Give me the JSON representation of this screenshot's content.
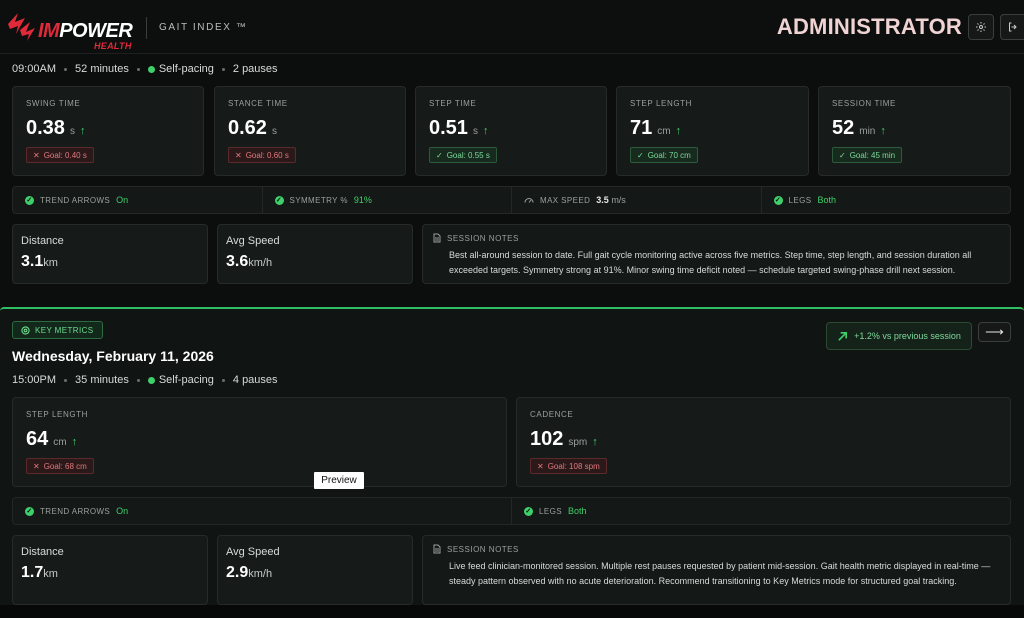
{
  "header": {
    "brand_im": "IM",
    "brand_power": "POWER",
    "brand_sub": "HEALTH",
    "product": "GAIT INDEX ™",
    "role": "ADMINISTRATOR"
  },
  "session1": {
    "time": "09:00AM",
    "duration": "52 minutes",
    "mode": "Self-pacing",
    "pauses": "2 pauses",
    "metrics": [
      {
        "label": "SWING TIME",
        "value": "0.38",
        "unit": "s",
        "goal": "Goal: 0.40 s",
        "status": "miss"
      },
      {
        "label": "STANCE TIME",
        "value": "0.62",
        "unit": "s",
        "goal": "Goal: 0.60 s",
        "status": "miss"
      },
      {
        "label": "STEP TIME",
        "value": "0.51",
        "unit": "s",
        "goal": "Goal: 0.55 s",
        "status": "hit"
      },
      {
        "label": "STEP LENGTH",
        "value": "71",
        "unit": "cm",
        "goal": "Goal: 70 cm",
        "status": "hit"
      },
      {
        "label": "SESSION TIME",
        "value": "52",
        "unit": "min",
        "goal": "Goal: 45 min",
        "status": "hit"
      }
    ],
    "flags": {
      "trend_label": "TREND ARROWS",
      "trend_value": "On",
      "symmetry_label": "SYMMETRY %",
      "symmetry_value": "91%",
      "speed_label": "MAX SPEED",
      "speed_value": "3.5",
      "speed_unit": "m/s",
      "legs_label": "LEGS",
      "legs_value": "Both"
    },
    "distance_label": "Distance",
    "distance_value": "3.1",
    "distance_unit": "km",
    "speed_label": "Avg Speed",
    "speed_value": "3.6",
    "speed_unit": "km/h",
    "notes_label": "SESSION NOTES",
    "notes": "Best all-around session to date. Full gait cycle monitoring active across five metrics. Step time, step length, and session duration all exceeded targets. Symmetry strong at 91%. Minor swing time deficit noted — schedule targeted swing-phase drill next session."
  },
  "session2": {
    "badge": "KEY METRICS",
    "date": "Wednesday, February 11, 2026",
    "compare": "+1.2% vs previous session",
    "time": "15:00PM",
    "duration": "35 minutes",
    "mode": "Self-pacing",
    "pauses": "4 pauses",
    "metrics": [
      {
        "label": "STEP LENGTH",
        "value": "64",
        "unit": "cm",
        "goal": "Goal: 68 cm",
        "status": "miss"
      },
      {
        "label": "CADENCE",
        "value": "102",
        "unit": "spm",
        "goal": "Goal: 108 spm",
        "status": "miss"
      }
    ],
    "flags": {
      "trend_label": "TREND ARROWS",
      "trend_value": "On",
      "legs_label": "LEGS",
      "legs_value": "Both"
    },
    "distance_label": "Distance",
    "distance_value": "1.7",
    "distance_unit": "km",
    "speed_label": "Avg Speed",
    "speed_value": "2.9",
    "speed_unit": "km/h",
    "notes_label": "SESSION NOTES",
    "notes": "Live feed clinician-monitored session. Multiple rest pauses requested by patient mid-session. Gait health metric displayed in real-time — steady pattern observed with no acute deterioration. Recommend transitioning to Key Metrics mode for structured goal tracking."
  },
  "tooltip": "Preview",
  "colors": {
    "accent_green": "#3ed06b",
    "miss_red": "#e07a7f",
    "brand_red": "#e02a3a"
  }
}
